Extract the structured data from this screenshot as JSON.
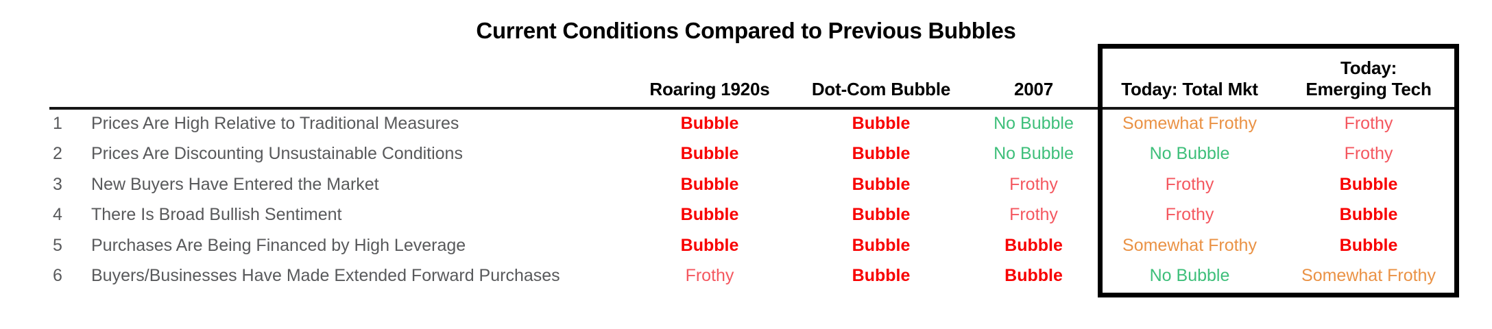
{
  "title": "Current Conditions Compared to Previous Bubbles",
  "columns": [
    {
      "label": "Roaring 1920s"
    },
    {
      "label": "Dot-Com Bubble"
    },
    {
      "label": "2007"
    },
    {
      "label": "Today: Total Mkt"
    },
    {
      "label": "Today: Emerging Tech"
    }
  ],
  "rows": [
    {
      "num": "1",
      "label": "Prices Are High Relative to Traditional Measures",
      "values": [
        {
          "text": "Bubble",
          "level": "bubble"
        },
        {
          "text": "Bubble",
          "level": "bubble"
        },
        {
          "text": "No Bubble",
          "level": "no-bubble"
        },
        {
          "text": "Somewhat Frothy",
          "level": "somewhat-frothy"
        },
        {
          "text": "Frothy",
          "level": "frothy"
        }
      ]
    },
    {
      "num": "2",
      "label": "Prices Are Discounting Unsustainable Conditions",
      "values": [
        {
          "text": "Bubble",
          "level": "bubble"
        },
        {
          "text": "Bubble",
          "level": "bubble"
        },
        {
          "text": "No Bubble",
          "level": "no-bubble"
        },
        {
          "text": "No Bubble",
          "level": "no-bubble"
        },
        {
          "text": "Frothy",
          "level": "frothy"
        }
      ]
    },
    {
      "num": "3",
      "label": "New Buyers Have Entered the Market",
      "values": [
        {
          "text": "Bubble",
          "level": "bubble"
        },
        {
          "text": "Bubble",
          "level": "bubble"
        },
        {
          "text": "Frothy",
          "level": "frothy"
        },
        {
          "text": "Frothy",
          "level": "frothy"
        },
        {
          "text": "Bubble",
          "level": "bubble"
        }
      ]
    },
    {
      "num": "4",
      "label": "There Is Broad Bullish Sentiment",
      "values": [
        {
          "text": "Bubble",
          "level": "bubble"
        },
        {
          "text": "Bubble",
          "level": "bubble"
        },
        {
          "text": "Frothy",
          "level": "frothy"
        },
        {
          "text": "Frothy",
          "level": "frothy"
        },
        {
          "text": "Bubble",
          "level": "bubble"
        }
      ]
    },
    {
      "num": "5",
      "label": "Purchases Are Being Financed by High Leverage",
      "values": [
        {
          "text": "Bubble",
          "level": "bubble"
        },
        {
          "text": "Bubble",
          "level": "bubble"
        },
        {
          "text": "Bubble",
          "level": "bubble"
        },
        {
          "text": "Somewhat Frothy",
          "level": "somewhat-frothy"
        },
        {
          "text": "Bubble",
          "level": "bubble"
        }
      ]
    },
    {
      "num": "6",
      "label": "Buyers/Businesses Have Made Extended Forward Purchases",
      "values": [
        {
          "text": "Frothy",
          "level": "frothy"
        },
        {
          "text": "Bubble",
          "level": "bubble"
        },
        {
          "text": "Bubble",
          "level": "bubble"
        },
        {
          "text": "No Bubble",
          "level": "no-bubble"
        },
        {
          "text": "Somewhat Frothy",
          "level": "somewhat-frothy"
        }
      ]
    }
  ],
  "colors": {
    "bubble": "#F80000",
    "frothy": "#F4575F",
    "no_bubble": "#3EBF7A",
    "somewhat_frothy": "#EA9245",
    "text_gray": "#58595B",
    "text_black": "#000000"
  },
  "chart_data": {
    "type": "table",
    "title": "Current Conditions Compared to Previous Bubbles",
    "columns": [
      "Roaring 1920s",
      "Dot-Com Bubble",
      "2007",
      "Today: Total Mkt",
      "Today: Emerging Tech"
    ],
    "row_labels": [
      "Prices Are High Relative to Traditional Measures",
      "Prices Are Discounting Unsustainable Conditions",
      "New Buyers Have Entered the Market",
      "There Is Broad Bullish Sentiment",
      "Purchases Are Being Financed by High Leverage",
      "Buyers/Businesses Have Made Extended Forward Purchases"
    ],
    "cells": [
      [
        "Bubble",
        "Bubble",
        "No Bubble",
        "Somewhat Frothy",
        "Frothy"
      ],
      [
        "Bubble",
        "Bubble",
        "No Bubble",
        "No Bubble",
        "Frothy"
      ],
      [
        "Bubble",
        "Bubble",
        "Frothy",
        "Frothy",
        "Bubble"
      ],
      [
        "Bubble",
        "Bubble",
        "Frothy",
        "Frothy",
        "Bubble"
      ],
      [
        "Bubble",
        "Bubble",
        "Bubble",
        "Somewhat Frothy",
        "Bubble"
      ],
      [
        "Frothy",
        "Bubble",
        "Bubble",
        "No Bubble",
        "Somewhat Frothy"
      ]
    ],
    "legend_semantics": {
      "Bubble": "red bold",
      "Frothy": "light red",
      "No Bubble": "green",
      "Somewhat Frothy": "orange"
    },
    "layout": {
      "highlighted_columns": [
        "Today: Total Mkt",
        "Today: Emerging Tech"
      ],
      "highlight_style": "thick black box"
    }
  }
}
